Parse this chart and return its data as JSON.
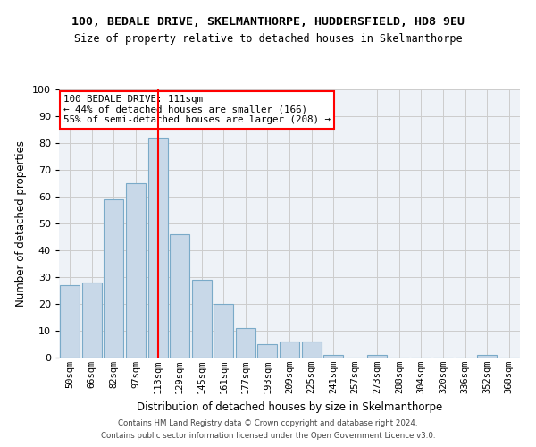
{
  "title": "100, BEDALE DRIVE, SKELMANTHORPE, HUDDERSFIELD, HD8 9EU",
  "subtitle": "Size of property relative to detached houses in Skelmanthorpe",
  "xlabel": "Distribution of detached houses by size in Skelmanthorpe",
  "ylabel": "Number of detached properties",
  "bar_color": "#c8d8e8",
  "bar_edge_color": "#7aaac8",
  "grid_color": "#cccccc",
  "bg_color": "#eef2f7",
  "annotation_box_text": "100 BEDALE DRIVE: 111sqm\n← 44% of detached houses are smaller (166)\n55% of semi-detached houses are larger (208) →",
  "bin_labels": [
    "50sqm",
    "66sqm",
    "82sqm",
    "97sqm",
    "113sqm",
    "129sqm",
    "145sqm",
    "161sqm",
    "177sqm",
    "193sqm",
    "209sqm",
    "225sqm",
    "241sqm",
    "257sqm",
    "273sqm",
    "288sqm",
    "304sqm",
    "320sqm",
    "336sqm",
    "352sqm",
    "368sqm"
  ],
  "bar_values": [
    27,
    28,
    59,
    65,
    82,
    46,
    29,
    20,
    11,
    5,
    6,
    6,
    1,
    0,
    1,
    0,
    0,
    0,
    0,
    1,
    0
  ],
  "ylim": [
    0,
    100
  ],
  "yticks": [
    0,
    10,
    20,
    30,
    40,
    50,
    60,
    70,
    80,
    90,
    100
  ],
  "footer_line1": "Contains HM Land Registry data © Crown copyright and database right 2024.",
  "footer_line2": "Contains public sector information licensed under the Open Government Licence v3.0."
}
